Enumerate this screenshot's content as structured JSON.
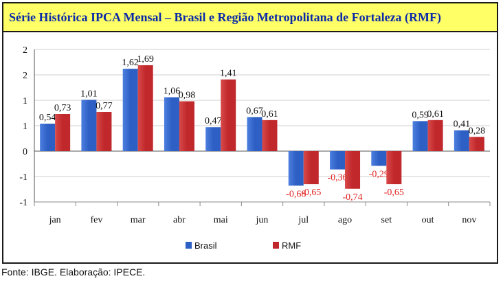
{
  "title": "Série Histórica IPCA Mensal – Brasil e Região Metropolitana de Fortaleza (RMF)",
  "source": "Fonte: IBGE. Elaboração: IPECE.",
  "colors": {
    "brasil": "#2e5fc4",
    "rmf": "#c0282c",
    "title_bg": "#ffff66",
    "title_text": "#0b2aa8",
    "negative_label": "#e0201e"
  },
  "chart_data": {
    "type": "bar",
    "title": "Série Histórica IPCA Mensal – Brasil e Região Metropolitana de Fortaleza (RMF)",
    "categories": [
      "jan",
      "fev",
      "mar",
      "abr",
      "mai",
      "jun",
      "jul",
      "ago",
      "set",
      "out",
      "nov"
    ],
    "series": [
      {
        "name": "Brasil",
        "values": [
          0.54,
          1.01,
          1.62,
          1.06,
          0.47,
          0.67,
          -0.68,
          -0.36,
          -0.29,
          0.59,
          0.41
        ],
        "labels": [
          "0,54",
          "1,01",
          "1,62",
          "1,06",
          "0,47",
          "0,67",
          "-0,68",
          "-0,36",
          "-0,29",
          "0,59",
          "0,41"
        ]
      },
      {
        "name": "RMF",
        "values": [
          0.73,
          0.77,
          1.69,
          0.98,
          1.41,
          0.61,
          -0.65,
          -0.74,
          -0.65,
          0.61,
          0.28
        ],
        "labels": [
          "0,73",
          "0,77",
          "1,69",
          "0,98",
          "1,41",
          "0,61",
          "-0,65",
          "-0,74",
          "-0,65",
          "0,61",
          "0,28"
        ]
      }
    ],
    "ylim": [
      -1,
      2
    ],
    "ytick_values": [
      -1,
      -0.5,
      0,
      0.5,
      1,
      1.5,
      2
    ],
    "ytick_labels": [
      "-1",
      "-1",
      "0",
      "1",
      "1",
      "2",
      "2"
    ],
    "grid": true,
    "legend_position": "bottom"
  }
}
